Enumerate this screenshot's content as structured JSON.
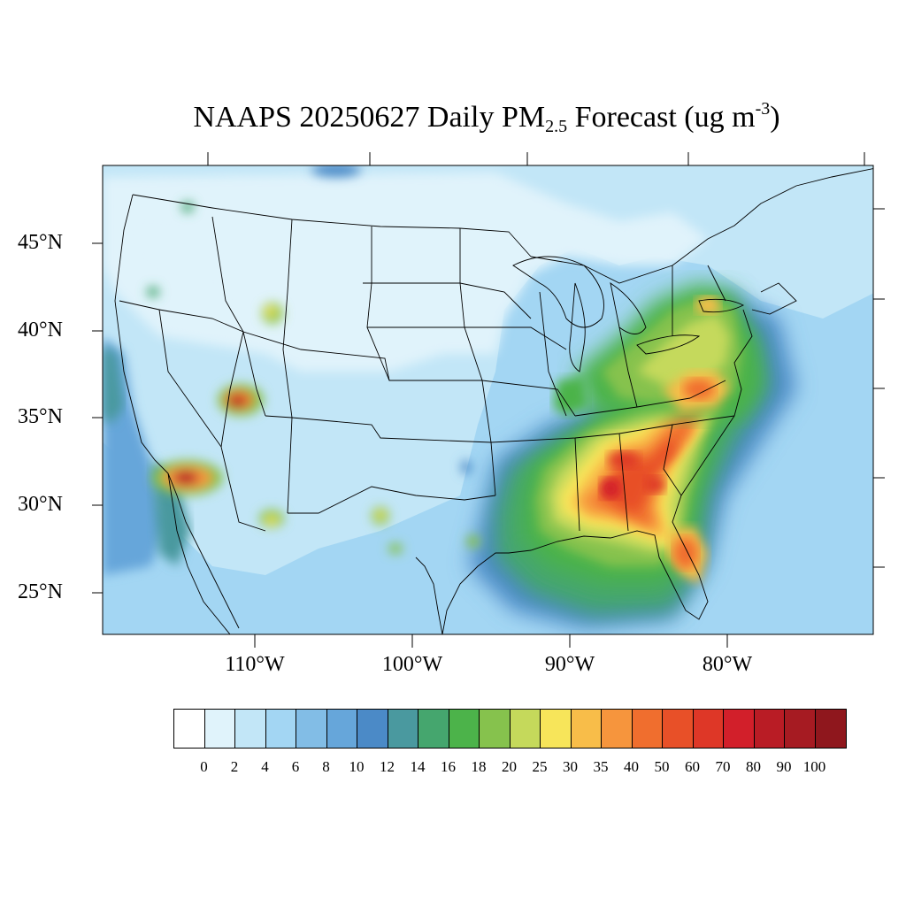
{
  "title": {
    "prefix": "NAAPS 20250627 Daily PM",
    "subscript": "2.5",
    "middle": " Forecast (ug m",
    "superscript": "-3",
    "suffix": ")"
  },
  "lat_labels": [
    "45°N",
    "40°N",
    "35°N",
    "30°N",
    "25°N"
  ],
  "lon_labels": [
    "110°W",
    "100°W",
    "90°W",
    "80°W"
  ],
  "legend": {
    "labels": [
      "0",
      "2",
      "4",
      "6",
      "8",
      "10",
      "12",
      "14",
      "16",
      "18",
      "20",
      "25",
      "30",
      "35",
      "40",
      "50",
      "60",
      "70",
      "80",
      "90",
      "100"
    ],
    "colors": [
      "#ffffff",
      "#e0f3fb",
      "#c2e6f7",
      "#a3d6f3",
      "#82bde6",
      "#66a6da",
      "#4b8ac7",
      "#4a999f",
      "#45a66e",
      "#4cb34a",
      "#86c24d",
      "#c5d95b",
      "#f7e55a",
      "#f8bd49",
      "#f6953d",
      "#f06e2e",
      "#e85028",
      "#de3727",
      "#d21f2a",
      "#b91c25",
      "#a61b22",
      "#8f171d"
    ]
  },
  "colors": {
    "ocean": "#66a6da",
    "background_land": "#c2e6f7"
  }
}
